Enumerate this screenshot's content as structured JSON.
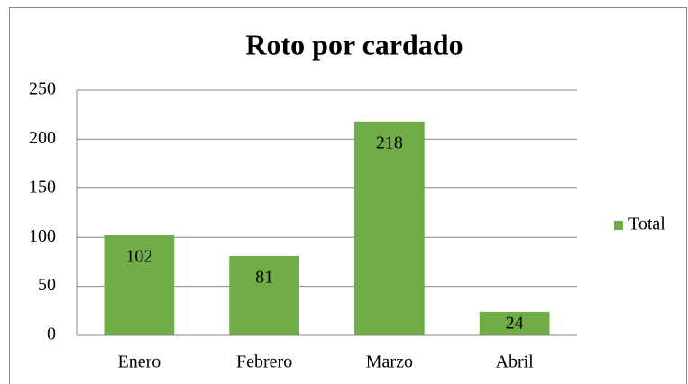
{
  "chart_data": {
    "type": "bar",
    "title": "Roto por cardado",
    "categories": [
      "Enero",
      "Febrero",
      "Marzo",
      "Abril"
    ],
    "series": [
      {
        "name": "Total",
        "color": "#70ad47",
        "values": [
          102,
          81,
          218,
          24
        ]
      }
    ],
    "ylim": [
      0,
      250
    ],
    "yticks": [
      0,
      50,
      100,
      150,
      200,
      250
    ],
    "grid": true,
    "legend": "right"
  }
}
